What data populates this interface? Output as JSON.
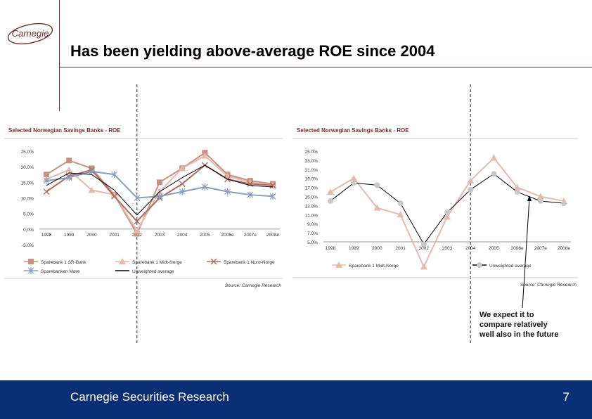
{
  "brand": {
    "logo_text": "Carnegie"
  },
  "page": {
    "title": "Has been yielding above-average ROE since 2004"
  },
  "annotation": "We expect it to\ncompare relatively\nwell also in the future",
  "footer": {
    "left": "Carnegie Securities Research",
    "page_number": "7"
  },
  "colors": {
    "footer_bg": "#0a2f74",
    "accent": "#7a2a2a"
  },
  "chart_data": [
    {
      "type": "line",
      "title": "Selected Norwegian Savings Banks - ROE",
      "x": [
        "1998",
        "1999",
        "2000",
        "2001",
        "2002",
        "2003",
        "2004",
        "2005",
        "2006e",
        "2007e",
        "2008e"
      ],
      "ylim": [
        -5,
        25
      ],
      "yticks": [
        "25.0%",
        "20.0%",
        "15.0%",
        "10.0%",
        "5.0%",
        "0.0%",
        "-5.0%"
      ],
      "series": [
        {
          "name": "Sparebank 1 SR-Bank",
          "color": "#c99080",
          "marker": "square",
          "values": [
            17.5,
            22,
            19.5,
            11,
            -1.5,
            15,
            19.5,
            24.5,
            17.5,
            15.5,
            14.5
          ]
        },
        {
          "name": "Sparebank 1 Midt-Norge",
          "color": "#e6b9ad",
          "marker": "triangle",
          "values": [
            16,
            19,
            12.5,
            11,
            -0.5,
            12,
            19.5,
            23.5,
            17,
            15,
            14
          ]
        },
        {
          "name": "Sparebank 1 Nord-Norge",
          "color": "#b06a5e",
          "marker": "x",
          "values": [
            12,
            17,
            19,
            10.5,
            2.5,
            10,
            14.5,
            20.5,
            16,
            14.5,
            14
          ]
        },
        {
          "name": "Sparebanken Møre",
          "color": "#8a9cbf",
          "marker": "star",
          "values": [
            15.5,
            16.5,
            18.5,
            17.5,
            10,
            10.5,
            12,
            13.5,
            12,
            11,
            10.5
          ]
        },
        {
          "name": "Unweighted average",
          "color": "#000000",
          "marker": "none",
          "values": [
            14,
            18,
            17.5,
            12.5,
            4.5,
            12,
            16.5,
            20.5,
            16,
            14,
            13.5
          ]
        }
      ],
      "marker_x": "2002",
      "legend": "bottom",
      "source": "Source: Carnegie Research"
    },
    {
      "type": "line",
      "title": "Selected Norwegian Savings Banks - ROE",
      "x": [
        "1998",
        "1999",
        "2000",
        "2001",
        "2002",
        "2003",
        "2004",
        "2005",
        "2006e",
        "2007e",
        "2008e"
      ],
      "ylim": [
        5,
        25
      ],
      "yticks": [
        "25.0%",
        "23.0%",
        "21.0%",
        "19.0%",
        "17.0%",
        "15.0%",
        "13.0%",
        "11.0%",
        "9.0%",
        "7.0%",
        "5.0%"
      ],
      "series": [
        {
          "name": "Sparebank 1 Midt-Norge",
          "color": "#e6b9ad",
          "marker": "triangle",
          "values": [
            16,
            19,
            12.5,
            11,
            -0.5,
            10.5,
            18.5,
            23.5,
            17,
            15,
            14
          ]
        },
        {
          "name": "Unweighted average",
          "color": "#000000",
          "marker": "circle",
          "values": [
            14,
            18,
            17.5,
            13.5,
            4.5,
            11.5,
            16.5,
            20,
            16,
            14,
            13.5
          ]
        }
      ],
      "marker_x": "2004",
      "legend": "bottom",
      "source": "Source: Carnegie Research"
    }
  ]
}
